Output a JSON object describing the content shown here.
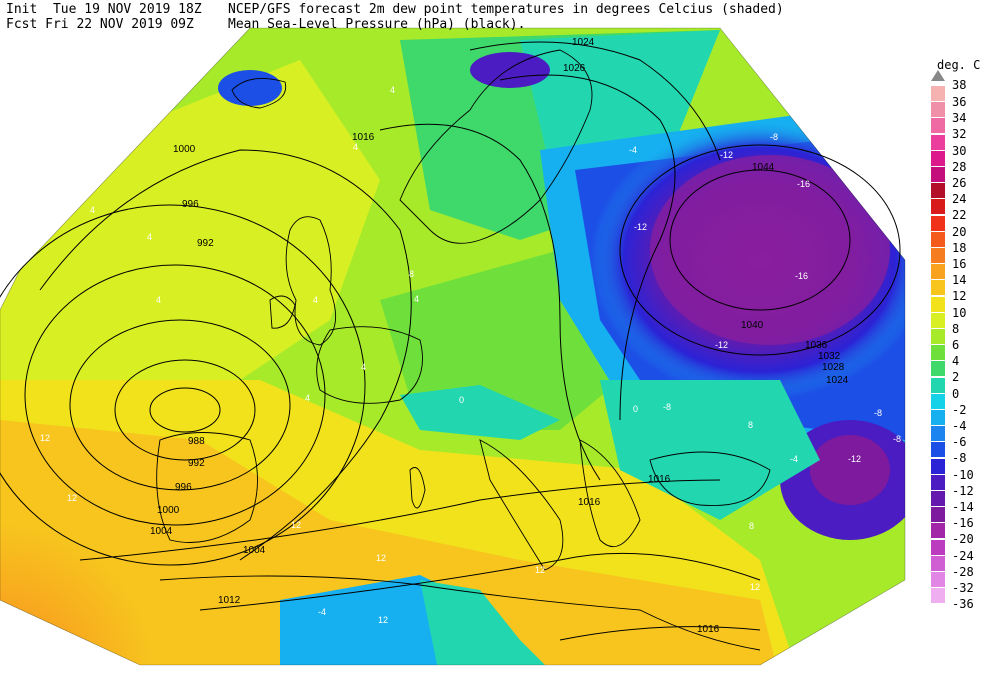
{
  "header": {
    "line1_left": "Init  Tue 19 NOV 2019 18Z",
    "line2_left": "Fcst Fri 22 NOV 2019 09Z",
    "line1_right": "NCEP/GFS forecast 2m dew point temperatures in degrees Celcius (shaded)",
    "line2_right": "Mean Sea-Level Pressure (hPa) (black)."
  },
  "legend": {
    "unit": "deg. C",
    "top_value": "38",
    "entries": [
      {
        "label": "36",
        "color": "#f6b1b1"
      },
      {
        "label": "34",
        "color": "#f08fa8"
      },
      {
        "label": "32",
        "color": "#ef6aa3"
      },
      {
        "label": "30",
        "color": "#ec3f9d"
      },
      {
        "label": "28",
        "color": "#dd1a8b"
      },
      {
        "label": "26",
        "color": "#c40e7c"
      },
      {
        "label": "24",
        "color": "#b30f2a"
      },
      {
        "label": "22",
        "color": "#d91a1a"
      },
      {
        "label": "20",
        "color": "#f0321b"
      },
      {
        "label": "18",
        "color": "#f35a1c"
      },
      {
        "label": "16",
        "color": "#f57d1f"
      },
      {
        "label": "14",
        "color": "#f8a21f"
      },
      {
        "label": "12",
        "color": "#f7c51e"
      },
      {
        "label": "10",
        "color": "#f1e21c"
      },
      {
        "label": "8",
        "color": "#d8f023"
      },
      {
        "label": "6",
        "color": "#a7ea2a"
      },
      {
        "label": "4",
        "color": "#6fe03b"
      },
      {
        "label": "2",
        "color": "#3fd86a"
      },
      {
        "label": "0",
        "color": "#22d6b0"
      },
      {
        "label": "-2",
        "color": "#15d2e8"
      },
      {
        "label": "-4",
        "color": "#16b0f0"
      },
      {
        "label": "-6",
        "color": "#1b84ee"
      },
      {
        "label": "-8",
        "color": "#1c4fe6"
      },
      {
        "label": "-10",
        "color": "#2b23d6"
      },
      {
        "label": "-12",
        "color": "#4a1cc1"
      },
      {
        "label": "-14",
        "color": "#6418ad"
      },
      {
        "label": "-16",
        "color": "#7e1a9d"
      },
      {
        "label": "-20",
        "color": "#a126a8"
      },
      {
        "label": "-24",
        "color": "#bb3cbf"
      },
      {
        "label": "-28",
        "color": "#d05fd4"
      },
      {
        "label": "-32",
        "color": "#e186e4"
      },
      {
        "label": "-36",
        "color": "#efaef0"
      }
    ]
  },
  "isobar_labels": [
    "1024",
    "1026",
    "1016",
    "1000",
    "996",
    "992",
    "988",
    "992",
    "996",
    "1000",
    "1004",
    "1004",
    "1012",
    "1016",
    "1016",
    "1016",
    "1044",
    "1040",
    "1036",
    "1032",
    "1028",
    "1024"
  ],
  "dewpoint_labels": [
    "4",
    "4",
    "4",
    "4",
    "4",
    "4",
    "4",
    "4",
    "8",
    "4",
    "12",
    "12",
    "12",
    "12",
    "12",
    "12",
    "12",
    "8",
    "0",
    "-4",
    "-4",
    "-8",
    "-12",
    "-12",
    "-16",
    "-16",
    "-12",
    "-8",
    "-8",
    "-12",
    "-4",
    "8",
    "0",
    "-8"
  ],
  "map_colors": {
    "background": "#ffffff",
    "land_outline": "#000000",
    "isobar": "#000000"
  }
}
